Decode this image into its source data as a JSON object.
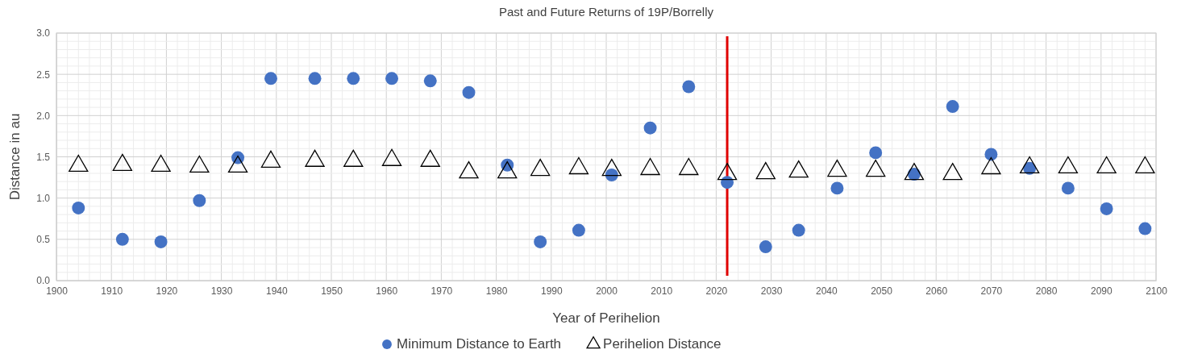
{
  "chart_data": {
    "type": "scatter",
    "title": "Past and Future Returns of 19P/Borrelly",
    "xlabel": "Year of Perihelion",
    "ylabel": "Distance in au",
    "x": [
      1904,
      1912,
      1919,
      1926,
      1933,
      1939,
      1947,
      1954,
      1961,
      1968,
      1975,
      1982,
      1988,
      1995,
      2001,
      2008,
      2015,
      2022,
      2029,
      2035,
      2042,
      2049,
      2056,
      2063,
      2070,
      2077,
      2084,
      2091,
      2098
    ],
    "series": [
      {
        "name": "Minimum Distance to Earth",
        "color": "#4472c4",
        "marker": "circle",
        "values": [
          0.88,
          0.5,
          0.47,
          0.97,
          1.49,
          2.45,
          2.45,
          2.45,
          2.45,
          2.42,
          2.28,
          1.4,
          0.47,
          0.61,
          1.28,
          1.85,
          2.35,
          1.19,
          0.41,
          0.61,
          1.12,
          1.55,
          1.29,
          2.11,
          1.53,
          1.36,
          1.12,
          0.87,
          0.63
        ]
      },
      {
        "name": "Perihelion Distance",
        "color": "#000000",
        "marker": "triangle",
        "values": [
          1.39,
          1.4,
          1.39,
          1.38,
          1.38,
          1.44,
          1.45,
          1.45,
          1.46,
          1.45,
          1.31,
          1.31,
          1.34,
          1.36,
          1.34,
          1.35,
          1.35,
          1.29,
          1.3,
          1.32,
          1.33,
          1.33,
          1.29,
          1.29,
          1.36,
          1.37,
          1.37,
          1.37,
          1.37
        ]
      }
    ],
    "xlim": [
      1900,
      2100
    ],
    "xticks": [
      1900,
      1910,
      1920,
      1930,
      1940,
      1950,
      1960,
      1970,
      1980,
      1990,
      2000,
      2010,
      2020,
      2030,
      2040,
      2050,
      2060,
      2070,
      2080,
      2090,
      2100
    ],
    "ylim": [
      0,
      3
    ],
    "yticks": [
      {
        "value": 0,
        "label": "0.0"
      },
      {
        "value": 0.5,
        "label": "0.5"
      },
      {
        "value": 1,
        "label": "1.0"
      },
      {
        "value": 1.5,
        "label": "1.5"
      },
      {
        "value": 2,
        "label": "2.0"
      },
      {
        "value": 2.5,
        "label": "2.5"
      },
      {
        "value": 3,
        "label": "3.0"
      }
    ],
    "ref_lines": [
      {
        "axis": "x",
        "value": 2022,
        "color": "#e00000"
      }
    ],
    "grid": true,
    "legend": "bottom"
  }
}
